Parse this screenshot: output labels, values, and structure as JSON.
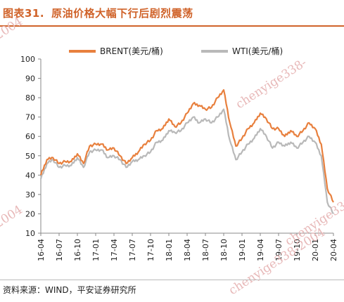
{
  "header": {
    "figure_number": "图表31.",
    "title": "原油价格大幅下行后剧烈震荡"
  },
  "footer": {
    "source": "资料来源：WIND，平安证券研究所"
  },
  "watermark": {
    "text_main": "chenyige338-2004",
    "text_top_left": "-2004",
    "text_mid_left": "-2004",
    "text_top_right": "chenyige338-",
    "text_mid_right": "chenyige338-",
    "text_bottom_right": "chenyige338-2004"
  },
  "colors": {
    "brent": "#e8803e",
    "wti": "#b9b9b9",
    "title": "#d0632a",
    "watermark": "#e8b9b9"
  },
  "chart_data": {
    "type": "line",
    "ylim": [
      10,
      100
    ],
    "y_ticks": [
      10,
      20,
      30,
      40,
      50,
      60,
      70,
      80,
      90,
      100
    ],
    "y_tick_labels": [
      "10",
      "20",
      "30",
      "40",
      "50",
      "60",
      "70",
      "80",
      "90",
      "100"
    ],
    "x_tick_labels": [
      "16-04",
      "16-07",
      "16-10",
      "17-01",
      "17-04",
      "17-07",
      "17-10",
      "18-01",
      "18-04",
      "18-07",
      "18-10",
      "19-01",
      "19-04",
      "19-07",
      "19-10",
      "20-01",
      "20-04"
    ],
    "legend_position": "top-center",
    "grid": false,
    "series": [
      {
        "name": "BRENT(美元/桶)",
        "color": "#e8803e",
        "x": [
          "16-04",
          "16-05",
          "16-06",
          "16-07",
          "16-08",
          "16-09",
          "16-10",
          "16-11",
          "16-12",
          "17-01",
          "17-02",
          "17-03",
          "17-04",
          "17-05",
          "17-06",
          "17-07",
          "17-08",
          "17-09",
          "17-10",
          "17-11",
          "17-12",
          "18-01",
          "18-02",
          "18-03",
          "18-04",
          "18-05",
          "18-06",
          "18-07",
          "18-08",
          "18-09",
          "18-10",
          "18-11",
          "18-12",
          "19-01",
          "19-02",
          "19-03",
          "19-04",
          "19-05",
          "19-06",
          "19-07",
          "19-08",
          "19-09",
          "19-10",
          "19-11",
          "19-12",
          "20-01",
          "20-02",
          "20-03",
          "20-04"
        ],
        "values": [
          40,
          48,
          49,
          46,
          47,
          47,
          51,
          46,
          55,
          56,
          56,
          53,
          54,
          50,
          46,
          49,
          52,
          56,
          58,
          63,
          64,
          69,
          65,
          67,
          72,
          77,
          76,
          74,
          75,
          80,
          84,
          67,
          55,
          59,
          64,
          67,
          72,
          69,
          64,
          64,
          60,
          63,
          60,
          63,
          67,
          64,
          56,
          33,
          26
        ]
      },
      {
        "name": "WTI(美元/桶)",
        "color": "#b9b9b9",
        "x": [
          "16-04",
          "16-05",
          "16-06",
          "16-07",
          "16-08",
          "16-09",
          "16-10",
          "16-11",
          "16-12",
          "17-01",
          "17-02",
          "17-03",
          "17-04",
          "17-05",
          "17-06",
          "17-07",
          "17-08",
          "17-09",
          "17-10",
          "17-11",
          "17-12",
          "18-01",
          "18-02",
          "18-03",
          "18-04",
          "18-05",
          "18-06",
          "18-07",
          "18-08",
          "18-09",
          "18-10",
          "18-11",
          "18-12",
          "19-01",
          "19-02",
          "19-03",
          "19-04",
          "19-05",
          "19-06",
          "19-07",
          "19-08",
          "19-09",
          "19-10",
          "19-11",
          "19-12",
          "20-01",
          "20-02",
          "20-03",
          "20-04"
        ],
        "values": [
          38,
          46,
          48,
          44,
          45,
          45,
          49,
          44,
          52,
          53,
          53,
          49,
          50,
          48,
          44,
          47,
          48,
          50,
          52,
          57,
          58,
          63,
          62,
          63,
          67,
          70,
          67,
          69,
          67,
          70,
          74,
          58,
          48,
          52,
          56,
          59,
          64,
          60,
          54,
          57,
          55,
          57,
          54,
          57,
          60,
          57,
          50,
          26,
          20
        ]
      }
    ]
  }
}
